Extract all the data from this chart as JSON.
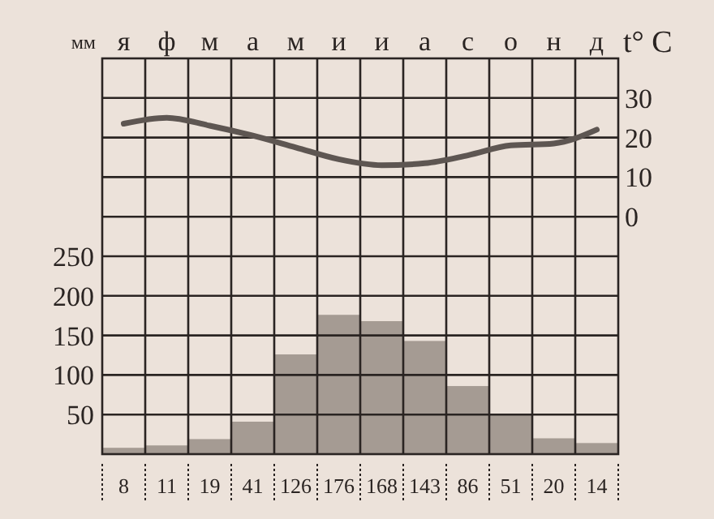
{
  "chart_data": {
    "type": "bar",
    "categories": [
      "я",
      "ф",
      "м",
      "а",
      "м",
      "и",
      "и",
      "а",
      "с",
      "о",
      "н",
      "д"
    ],
    "ylabel": "мм",
    "y2label": "t° C",
    "ylim": [
      0,
      500
    ],
    "yticks": [
      50,
      100,
      150,
      200,
      250
    ],
    "y2lim": [
      -60,
      40
    ],
    "y2ticks": [
      0,
      10,
      20,
      30
    ],
    "grid": true,
    "series": [
      {
        "color": "#a59b93",
        "values": [
          8,
          11,
          19,
          41,
          126,
          176,
          168,
          143,
          86,
          51,
          20,
          14
        ],
        "value_labels": [
          "8",
          "11",
          "19",
          "41",
          "126",
          "176",
          "168",
          "143",
          "86",
          "51",
          "20",
          "14"
        ]
      },
      {
        "type": "line",
        "axis": "y2",
        "color": "#5e5652",
        "values": [
          23.5,
          25,
          23,
          20.5,
          17.5,
          14.5,
          13,
          13.5,
          15.5,
          18,
          18.5,
          22
        ]
      }
    ]
  }
}
